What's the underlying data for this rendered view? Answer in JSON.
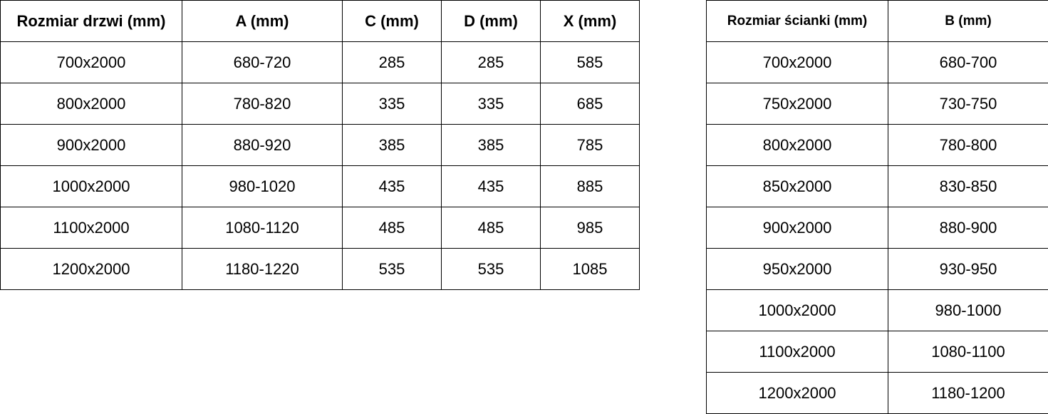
{
  "door_table": {
    "headers": [
      "Rozmiar drzwi (mm)",
      "A (mm)",
      "C (mm)",
      "D (mm)",
      "X (mm)"
    ],
    "rows": [
      [
        "700x2000",
        "680-720",
        "285",
        "285",
        "585"
      ],
      [
        "800x2000",
        "780-820",
        "335",
        "335",
        "685"
      ],
      [
        "900x2000",
        "880-920",
        "385",
        "385",
        "785"
      ],
      [
        "1000x2000",
        "980-1020",
        "435",
        "435",
        "885"
      ],
      [
        "1100x2000",
        "1080-1120",
        "485",
        "485",
        "985"
      ],
      [
        "1200x2000",
        "1180-1220",
        "535",
        "535",
        "1085"
      ]
    ]
  },
  "wall_table": {
    "headers": [
      "Rozmiar ścianki (mm)",
      "B (mm)"
    ],
    "rows": [
      [
        "700x2000",
        "680-700"
      ],
      [
        "750x2000",
        "730-750"
      ],
      [
        "800x2000",
        "780-800"
      ],
      [
        "850x2000",
        "830-850"
      ],
      [
        "900x2000",
        "880-900"
      ],
      [
        "950x2000",
        "930-950"
      ],
      [
        "1000x2000",
        "980-1000"
      ],
      [
        "1100x2000",
        "1080-1100"
      ],
      [
        "1200x2000",
        "1180-1200"
      ]
    ]
  }
}
